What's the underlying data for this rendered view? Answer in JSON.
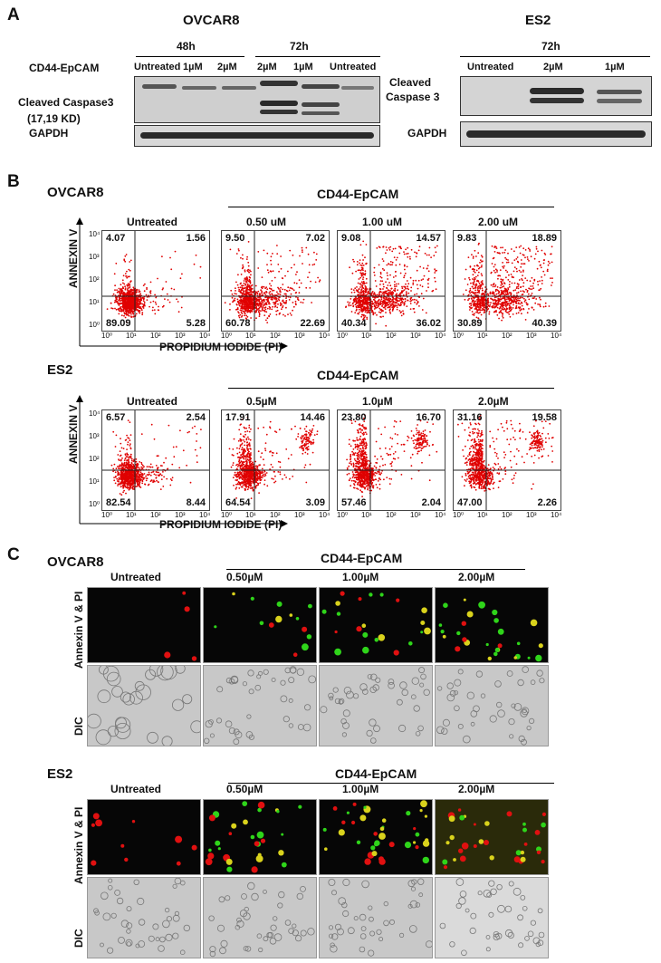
{
  "panel_a": {
    "letter": "A",
    "ovcar8": {
      "title": "OVCAR8",
      "row_label": "CD44-EpCAM",
      "time_groups": [
        "48h",
        "72h"
      ],
      "lanes": [
        "Untreated",
        "1µM",
        "2µM",
        "2µM",
        "1µM",
        "Untreated"
      ],
      "cleaved_label": "Cleaved Caspase3",
      "kd_label": "(17,19 KD)",
      "gapdh_label": "GAPDH"
    },
    "es2": {
      "title": "ES2",
      "time_group": "72h",
      "lanes": [
        "Untreated",
        "2µM",
        "1µM"
      ],
      "cleaved_line1": "Cleaved",
      "cleaved_line2": "Caspase 3",
      "gapdh_label": "GAPDH"
    }
  },
  "panel_b": {
    "letter": "B",
    "y_axis_label": "ANNEXIN V",
    "x_axis_label": "PROPIDIUM IODIDE (PI)",
    "tick_labels": [
      "10⁰",
      "10¹",
      "10²",
      "10³",
      "10⁴"
    ],
    "ovcar8": {
      "title": "OVCAR8",
      "group_label": "CD44-EpCAM",
      "plots": [
        {
          "label": "Untreated",
          "ul": "4.07",
          "ur": "1.56",
          "ll": "89.09",
          "lr": "5.28"
        },
        {
          "label": "0.50 uM",
          "ul": "9.50",
          "ur": "7.02",
          "ll": "60.78",
          "lr": "22.69"
        },
        {
          "label": "1.00 uM",
          "ul": "9.08",
          "ur": "14.57",
          "ll": "40.34",
          "lr": "36.02"
        },
        {
          "label": "2.00 uM",
          "ul": "9.83",
          "ur": "18.89",
          "ll": "30.89",
          "lr": "40.39"
        }
      ]
    },
    "es2": {
      "title": "ES2",
      "group_label": "CD44-EpCAM",
      "plots": [
        {
          "label": "Untreated",
          "ul": "6.57",
          "ur": "2.54",
          "ll": "82.54",
          "lr": "8.44"
        },
        {
          "label": "0.5µM",
          "ul": "17.91",
          "ur": "14.46",
          "ll": "64.54",
          "lr": "3.09"
        },
        {
          "label": "1.0µM",
          "ul": "23.80",
          "ur": "16.70",
          "ll": "57.46",
          "lr": "2.04"
        },
        {
          "label": "2.0µM",
          "ul": "31.16",
          "ur": "19.58",
          "ll": "47.00",
          "lr": "2.26"
        }
      ]
    }
  },
  "panel_c": {
    "letter": "C",
    "fluor_label": "Annexin V & PI",
    "dic_label": "DIC",
    "ovcar8": {
      "title": "OVCAR8",
      "group_label": "CD44-EpCAM",
      "columns": [
        "Untreated",
        "0.50µM",
        "1.00µM",
        "2.00µM"
      ]
    },
    "es2": {
      "title": "ES2",
      "group_label": "CD44-EpCAM",
      "columns": [
        "Untreated",
        "0.50µM",
        "1.00µM",
        "2.00µM"
      ]
    }
  },
  "colors": {
    "dot_red": "#e00000",
    "cell_green": "#2fd41a",
    "cell_red": "#e01010",
    "cell_yellow": "#d9d21c",
    "blot_bg": "#cfcfcf",
    "band": "#2a2a2a"
  }
}
